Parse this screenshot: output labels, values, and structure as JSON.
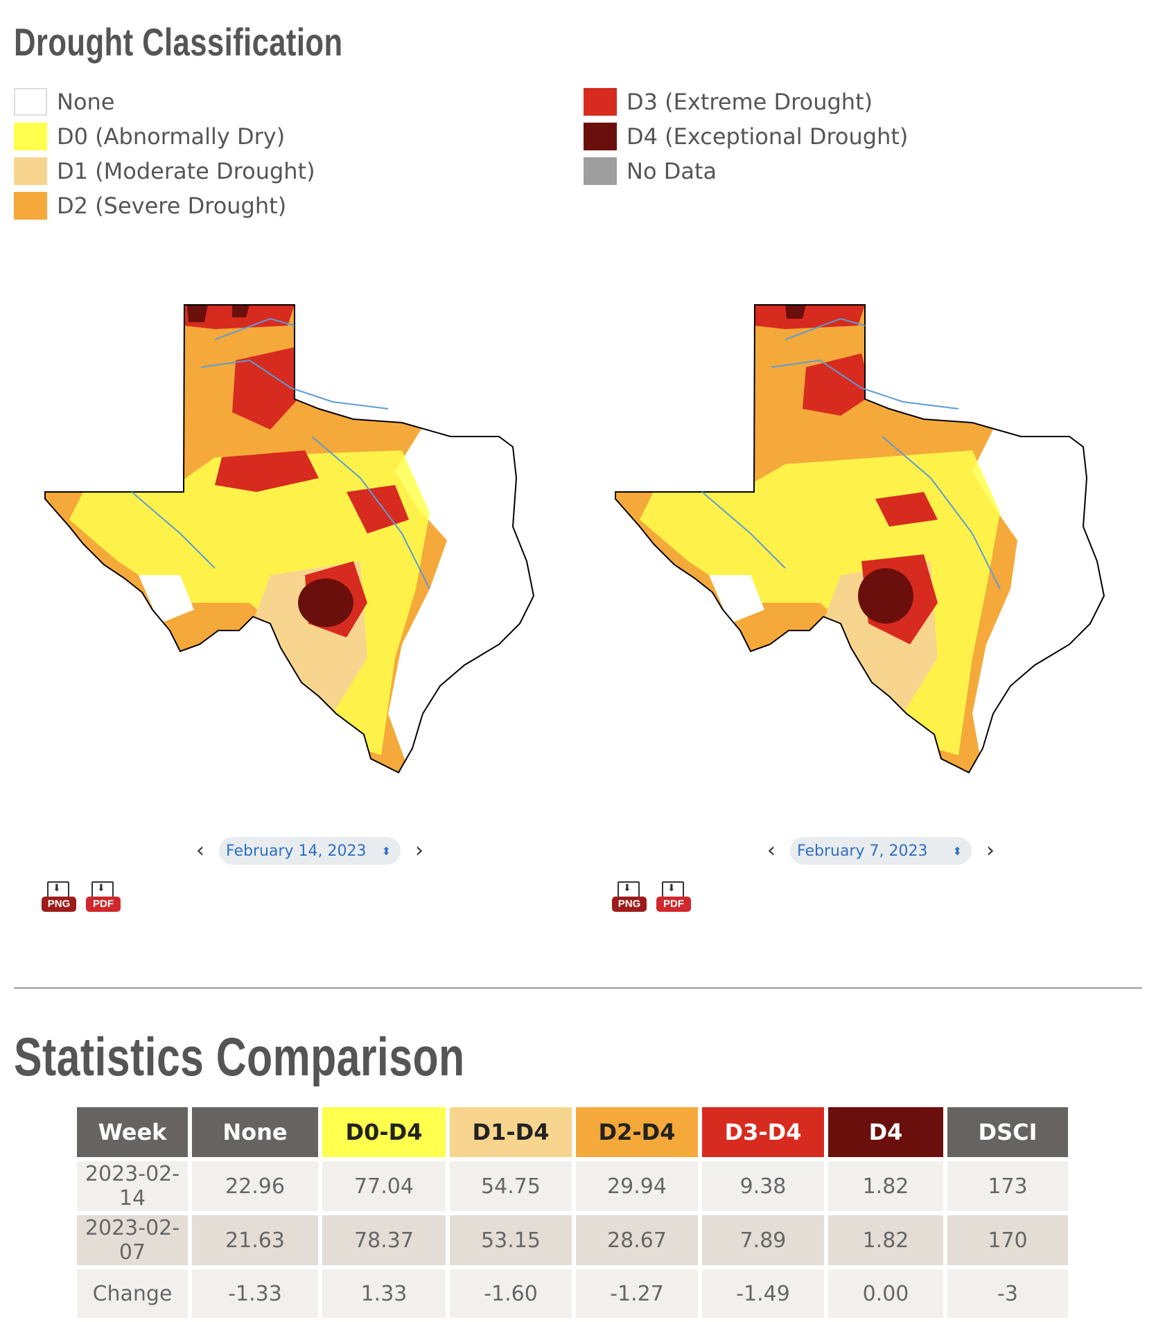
{
  "legend": {
    "title": "Drought Classification",
    "left": [
      {
        "label": "None",
        "color": "#ffffff"
      },
      {
        "label": "D0 (Abnormally Dry)",
        "color": "#ffff4d"
      },
      {
        "label": "D1 (Moderate Drought)",
        "color": "#f8d58e"
      },
      {
        "label": "D2 (Severe Drought)",
        "color": "#f5a93a"
      }
    ],
    "right": [
      {
        "label": "D3 (Extreme Drought)",
        "color": "#d72b1f"
      },
      {
        "label": "D4 (Exceptional Drought)",
        "color": "#6b0f0c"
      },
      {
        "label": "No Data",
        "color": "#9e9e9e"
      }
    ]
  },
  "maps": [
    {
      "date": "February 14, 2023",
      "png_label": "PNG",
      "pdf_label": "PDF"
    },
    {
      "date": "February 7, 2023",
      "png_label": "PNG",
      "pdf_label": "PDF"
    }
  ],
  "nav": {
    "prev_icon": "chevron-left-icon",
    "next_icon": "chevron-right-icon",
    "select_icon": "updown-icon"
  },
  "stats": {
    "title": "Statistics Comparison",
    "headers": [
      "Week",
      "None",
      "D0-D4",
      "D1-D4",
      "D2-D4",
      "D3-D4",
      "D4",
      "DSCI"
    ],
    "header_colors": [
      "#676360",
      "#676360",
      "#ffff4d",
      "#f8d58e",
      "#f5a93a",
      "#d72b1f",
      "#6b0f0c",
      "#676360"
    ],
    "header_text_colors": [
      "#ffffff",
      "#ffffff",
      "#222222",
      "#222222",
      "#222222",
      "#ffffff",
      "#ffffff",
      "#ffffff"
    ],
    "rows": [
      [
        "2023-02-14",
        "22.96",
        "77.04",
        "54.75",
        "29.94",
        "9.38",
        "1.82",
        "173"
      ],
      [
        "2023-02-07",
        "21.63",
        "78.37",
        "53.15",
        "28.67",
        "7.89",
        "1.82",
        "170"
      ],
      [
        "Change",
        "-1.33",
        "1.33",
        "-1.60",
        "-1.27",
        "-1.49",
        "0.00",
        "-3"
      ]
    ]
  }
}
